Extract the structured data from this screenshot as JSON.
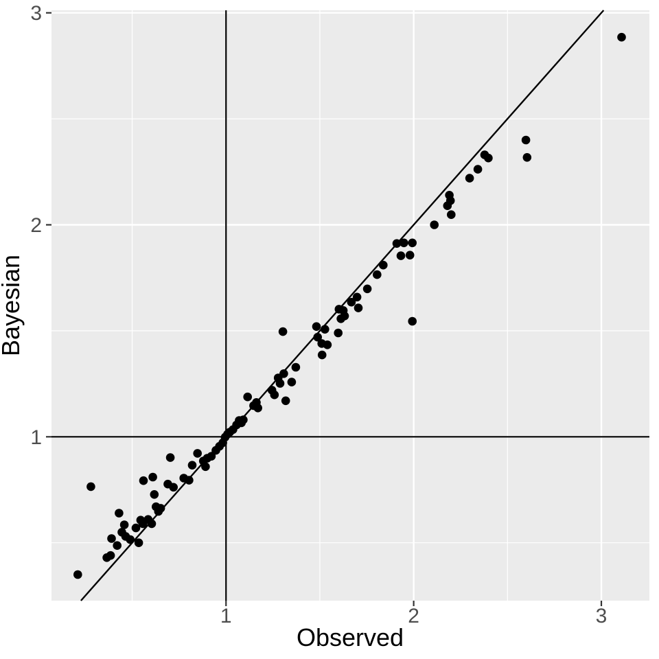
{
  "chart_data": {
    "type": "scatter",
    "title": "",
    "xlabel": "Observed",
    "ylabel": "Bayesian",
    "x_ticks": [
      1,
      2,
      3
    ],
    "y_ticks": [
      1,
      2,
      3
    ],
    "x_minor_gridlines": [
      0.5,
      1.5,
      2.5
    ],
    "y_minor_gridlines": [
      0.5,
      1.5,
      2.5
    ],
    "xlim": [
      0.07,
      3.256
    ],
    "ylim": [
      0.227,
      3.012
    ],
    "grid": "on",
    "legend": "none",
    "reference_lines": {
      "horizontal_y": 1,
      "vertical_x": 1,
      "diagonal": "y = x"
    },
    "colors": {
      "background": "#FFFFFF",
      "panel_bg": "#EBEBEB",
      "grid": "#FFFFFF",
      "point": "#000000",
      "line": "#000000",
      "tick_mark": "#333333",
      "tick_label": "#4D4D4D",
      "axis_title": "#000000"
    },
    "points": [
      [
        0.21,
        0.35
      ],
      [
        0.28,
        0.765
      ],
      [
        0.365,
        0.43
      ],
      [
        0.385,
        0.44
      ],
      [
        0.39,
        0.52
      ],
      [
        0.42,
        0.487
      ],
      [
        0.43,
        0.64
      ],
      [
        0.445,
        0.55
      ],
      [
        0.458,
        0.585
      ],
      [
        0.465,
        0.53
      ],
      [
        0.49,
        0.515
      ],
      [
        0.52,
        0.57
      ],
      [
        0.535,
        0.5
      ],
      [
        0.545,
        0.607
      ],
      [
        0.557,
        0.59
      ],
      [
        0.56,
        0.793
      ],
      [
        0.585,
        0.61
      ],
      [
        0.604,
        0.59
      ],
      [
        0.61,
        0.81
      ],
      [
        0.618,
        0.728
      ],
      [
        0.627,
        0.67
      ],
      [
        0.64,
        0.648
      ],
      [
        0.652,
        0.663
      ],
      [
        0.69,
        0.777
      ],
      [
        0.703,
        0.902
      ],
      [
        0.72,
        0.762
      ],
      [
        0.775,
        0.805
      ],
      [
        0.803,
        0.795
      ],
      [
        0.82,
        0.866
      ],
      [
        0.848,
        0.922
      ],
      [
        0.879,
        0.886
      ],
      [
        0.891,
        0.859
      ],
      [
        0.9,
        0.899
      ],
      [
        0.922,
        0.908
      ],
      [
        0.946,
        0.936
      ],
      [
        0.965,
        0.955
      ],
      [
        0.983,
        0.972
      ],
      [
        0.995,
        0.998
      ],
      [
        1.008,
        1.012
      ],
      [
        1.02,
        1.022
      ],
      [
        1.037,
        1.034
      ],
      [
        1.056,
        1.056
      ],
      [
        1.07,
        1.077
      ],
      [
        1.082,
        1.066
      ],
      [
        1.092,
        1.08
      ],
      [
        1.115,
        1.188
      ],
      [
        1.147,
        1.147
      ],
      [
        1.162,
        1.162
      ],
      [
        1.17,
        1.136
      ],
      [
        1.245,
        1.22
      ],
      [
        1.258,
        1.198
      ],
      [
        1.278,
        1.278
      ],
      [
        1.288,
        1.252
      ],
      [
        1.308,
        1.298
      ],
      [
        1.303,
        1.496
      ],
      [
        1.318,
        1.17
      ],
      [
        1.35,
        1.258
      ],
      [
        1.372,
        1.328
      ],
      [
        1.482,
        1.52
      ],
      [
        1.488,
        1.47
      ],
      [
        1.51,
        1.44
      ],
      [
        1.527,
        1.507
      ],
      [
        1.54,
        1.434
      ],
      [
        1.512,
        1.386
      ],
      [
        1.598,
        1.49
      ],
      [
        1.602,
        1.602
      ],
      [
        1.625,
        1.596
      ],
      [
        1.612,
        1.557
      ],
      [
        1.632,
        1.57
      ],
      [
        1.668,
        1.635
      ],
      [
        1.698,
        1.659
      ],
      [
        1.705,
        1.608
      ],
      [
        1.753,
        1.698
      ],
      [
        1.805,
        1.765
      ],
      [
        1.838,
        1.81
      ],
      [
        1.91,
        1.912
      ],
      [
        1.948,
        1.915
      ],
      [
        1.993,
        1.915
      ],
      [
        1.932,
        1.854
      ],
      [
        1.98,
        1.857
      ],
      [
        1.993,
        1.545
      ],
      [
        2.11,
        2.0
      ],
      [
        2.18,
        2.09
      ],
      [
        2.19,
        2.14
      ],
      [
        2.196,
        2.114
      ],
      [
        2.2,
        2.048
      ],
      [
        2.298,
        2.22
      ],
      [
        2.342,
        2.262
      ],
      [
        2.378,
        2.33
      ],
      [
        2.398,
        2.315
      ],
      [
        2.598,
        2.4
      ],
      [
        2.604,
        2.318
      ],
      [
        3.108,
        2.885
      ]
    ]
  }
}
